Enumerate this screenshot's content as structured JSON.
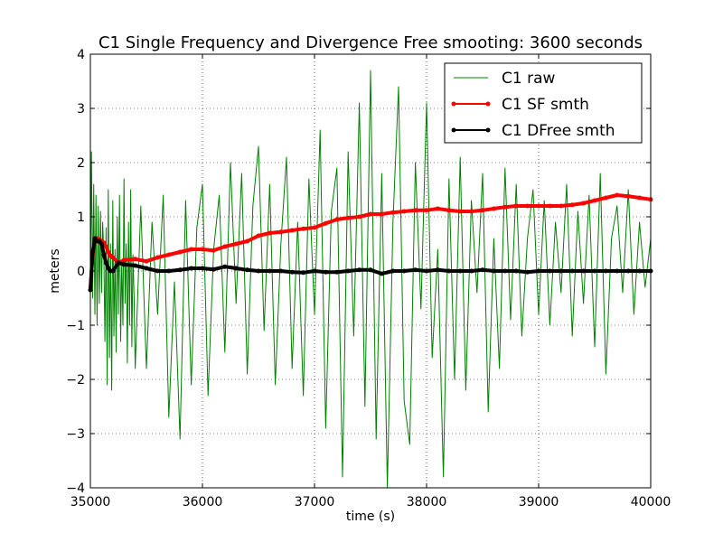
{
  "chart_data": {
    "type": "line",
    "title": "C1 Single Frequency and Divergence Free smooting: 3600 seconds",
    "xlabel": "time (s)",
    "ylabel": "meters",
    "xlim": [
      35000,
      40000
    ],
    "ylim": [
      -4,
      4
    ],
    "xticks": [
      35000,
      36000,
      37000,
      38000,
      39000,
      40000
    ],
    "yticks": [
      -4,
      -3,
      -2,
      -1,
      0,
      1,
      2,
      3,
      4
    ],
    "grid": true,
    "grid_style": "dotted",
    "legend_position": "top-right",
    "series": [
      {
        "name": "C1 raw",
        "color": "#008000",
        "style": "line",
        "x": [
          35000,
          35010,
          35020,
          35030,
          35040,
          35050,
          35060,
          35070,
          35080,
          35090,
          35100,
          35110,
          35120,
          35130,
          35140,
          35150,
          35160,
          35170,
          35180,
          35190,
          35200,
          35210,
          35220,
          35230,
          35240,
          35250,
          35260,
          35270,
          35280,
          35290,
          35300,
          35310,
          35320,
          35330,
          35340,
          35350,
          35360,
          35370,
          35380,
          35390,
          35400,
          35450,
          35500,
          35550,
          35600,
          35650,
          35700,
          35750,
          35800,
          35850,
          35900,
          35950,
          36000,
          36050,
          36100,
          36150,
          36200,
          36250,
          36300,
          36350,
          36400,
          36450,
          36500,
          36550,
          36600,
          36650,
          36700,
          36750,
          36800,
          36850,
          36900,
          36950,
          37000,
          37050,
          37100,
          37150,
          37200,
          37250,
          37300,
          37350,
          37400,
          37450,
          37500,
          37550,
          37600,
          37650,
          37700,
          37750,
          37800,
          37850,
          37900,
          37950,
          38000,
          38050,
          38100,
          38150,
          38200,
          38250,
          38300,
          38350,
          38400,
          38450,
          38500,
          38550,
          38600,
          38650,
          38700,
          38750,
          38800,
          38850,
          38900,
          38950,
          39000,
          39050,
          39100,
          39150,
          39200,
          39250,
          39300,
          39350,
          39400,
          39450,
          39500,
          39550,
          39600,
          39650,
          39700,
          39750,
          39800,
          39850,
          39900,
          39950,
          40000
        ],
        "y": [
          -0.3,
          2.2,
          -0.5,
          1.6,
          -0.8,
          1.4,
          -1.0,
          1.2,
          -0.6,
          1.1,
          -0.4,
          0.9,
          0.3,
          -1.3,
          0.8,
          -2.1,
          1.5,
          -1.6,
          0.5,
          -2.2,
          1.3,
          -1.2,
          0.4,
          -1.5,
          1.0,
          -0.8,
          1.4,
          -1.3,
          0.2,
          -1.0,
          1.7,
          -0.6,
          0.5,
          -1.7,
          0.9,
          -1.0,
          1.5,
          -1.4,
          0.3,
          -0.5,
          -1.8,
          1.2,
          -1.8,
          0.9,
          -0.8,
          1.4,
          -2.7,
          -0.2,
          -3.1,
          1.3,
          -2.1,
          0.8,
          1.6,
          -2.3,
          0.4,
          1.4,
          -1.5,
          2.0,
          -0.6,
          1.8,
          -1.9,
          1.2,
          2.3,
          -1.1,
          1.6,
          -2.1,
          0.5,
          2.1,
          -1.8,
          0.9,
          -2.3,
          1.7,
          -0.8,
          2.6,
          -2.9,
          1.1,
          1.9,
          -3.8,
          2.2,
          -1.2,
          3.1,
          -2.5,
          3.7,
          -3.1,
          1.8,
          -4.0,
          0.9,
          3.4,
          -2.4,
          -3.2,
          2.0,
          -0.7,
          3.1,
          -1.6,
          0.4,
          -3.8,
          1.7,
          -2.0,
          2.1,
          -2.2,
          1.3,
          -0.4,
          1.8,
          -2.6,
          0.6,
          -1.8,
          1.9,
          -0.9,
          1.6,
          -1.2,
          0.6,
          1.5,
          -0.8,
          1.3,
          -1.0,
          0.9,
          -0.4,
          1.6,
          -1.2,
          1.1,
          -0.6,
          1.4,
          -1.4,
          1.8,
          -1.9,
          0.6,
          1.2,
          -0.4,
          1.5,
          -0.8,
          0.9,
          -0.3,
          0.6
        ]
      },
      {
        "name": "C1 SF smth",
        "color": "#ff0000",
        "style": "line-marker",
        "x": [
          35000,
          35020,
          35040,
          35060,
          35080,
          35100,
          35120,
          35140,
          35160,
          35180,
          35200,
          35250,
          35300,
          35400,
          35500,
          35600,
          35700,
          35800,
          35900,
          36000,
          36100,
          36200,
          36300,
          36400,
          36500,
          36600,
          36700,
          36800,
          36900,
          37000,
          37100,
          37200,
          37300,
          37400,
          37500,
          37600,
          37700,
          37800,
          37900,
          38000,
          38100,
          38200,
          38300,
          38400,
          38500,
          38600,
          38700,
          38800,
          38900,
          39000,
          39100,
          39200,
          39300,
          39400,
          39500,
          39600,
          39700,
          39800,
          39900,
          40000
        ],
        "y": [
          -0.35,
          0.3,
          0.55,
          0.6,
          0.58,
          0.55,
          0.52,
          0.45,
          0.35,
          0.28,
          0.25,
          0.15,
          0.2,
          0.22,
          0.18,
          0.25,
          0.3,
          0.35,
          0.4,
          0.4,
          0.38,
          0.45,
          0.5,
          0.55,
          0.65,
          0.7,
          0.72,
          0.75,
          0.78,
          0.8,
          0.88,
          0.95,
          0.98,
          1.0,
          1.05,
          1.05,
          1.08,
          1.1,
          1.12,
          1.12,
          1.15,
          1.12,
          1.1,
          1.1,
          1.12,
          1.15,
          1.18,
          1.2,
          1.2,
          1.2,
          1.2,
          1.2,
          1.22,
          1.25,
          1.3,
          1.35,
          1.4,
          1.38,
          1.35,
          1.32
        ]
      },
      {
        "name": "C1 DFree smth",
        "color": "#000000",
        "style": "line-marker",
        "x": [
          35000,
          35020,
          35040,
          35060,
          35080,
          35100,
          35120,
          35140,
          35160,
          35180,
          35200,
          35250,
          35300,
          35400,
          35500,
          35600,
          35700,
          35800,
          35900,
          36000,
          36100,
          36200,
          36300,
          36400,
          36500,
          36600,
          36700,
          36800,
          36900,
          37000,
          37100,
          37200,
          37300,
          37400,
          37500,
          37600,
          37700,
          37800,
          37900,
          38000,
          38100,
          38200,
          38300,
          38400,
          38500,
          38600,
          38700,
          38800,
          38900,
          39000,
          39100,
          39200,
          39300,
          39400,
          39500,
          39600,
          39700,
          39800,
          39900,
          40000
        ],
        "y": [
          -0.35,
          0.35,
          0.6,
          0.55,
          0.55,
          0.5,
          0.3,
          0.15,
          0.05,
          0.0,
          0.0,
          0.15,
          0.12,
          0.1,
          0.05,
          0.0,
          0.0,
          0.02,
          0.05,
          0.05,
          0.03,
          0.08,
          0.05,
          0.02,
          0.0,
          0.0,
          0.0,
          -0.02,
          -0.03,
          0.0,
          -0.02,
          -0.02,
          0.0,
          0.02,
          0.02,
          -0.05,
          0.0,
          0.0,
          0.02,
          0.0,
          0.02,
          0.0,
          0.0,
          0.0,
          0.02,
          0.0,
          0.0,
          0.0,
          -0.02,
          0.0,
          0.0,
          0.0,
          0.0,
          0.0,
          0.0,
          0.0,
          0.0,
          0.0,
          0.0,
          0.0
        ]
      }
    ]
  }
}
